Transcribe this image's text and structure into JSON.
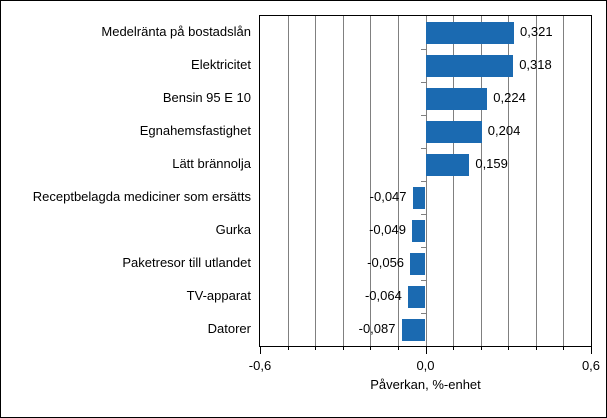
{
  "chart_data": {
    "type": "bar",
    "orientation": "horizontal",
    "title": "",
    "xlabel": "Påverkan, %-enhet",
    "ylabel": "",
    "xlim": [
      -0.6,
      0.6
    ],
    "gridline_step": 0.1,
    "grid": true,
    "legend": false,
    "categories": [
      "Medelränta på bostadslån",
      "Elektricitet",
      "Bensin 95 E 10",
      "Egnahemsfastighet",
      "Lätt brännolja",
      "Receptbelagda mediciner som ersätts",
      "Gurka",
      "Paketresor till utlandet",
      "TV-apparat",
      "Datorer"
    ],
    "values": [
      0.321,
      0.318,
      0.224,
      0.204,
      0.159,
      -0.047,
      -0.049,
      -0.056,
      -0.064,
      -0.087
    ],
    "value_labels": [
      "0,321",
      "0,318",
      "0,224",
      "0,204",
      "0,159",
      "-0,047",
      "-0,049",
      "-0,056",
      "-0,064",
      "-0,087"
    ],
    "xticks": [
      {
        "value": -0.6,
        "label": "-0,6"
      },
      {
        "value": 0.0,
        "label": "0,0"
      },
      {
        "value": 0.6,
        "label": "0,6"
      }
    ],
    "bar_color": "#1b6ab1",
    "gridline_color": "#808080",
    "axis_color": "#000000",
    "text_color": "#000000"
  }
}
